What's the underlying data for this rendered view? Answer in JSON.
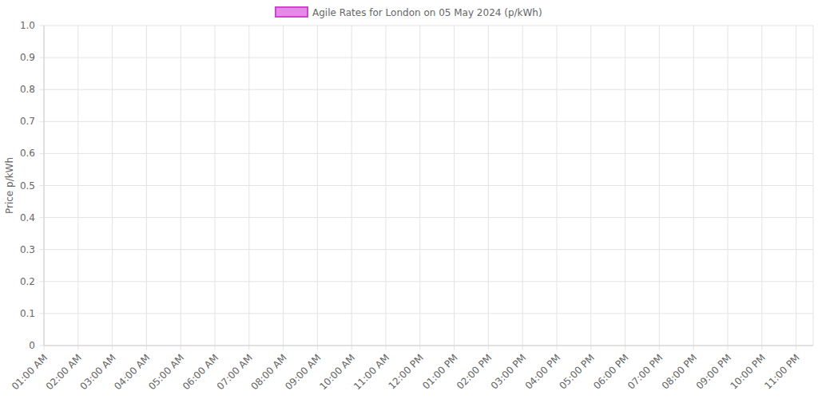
{
  "chart_data": {
    "type": "bar",
    "title": "Agile Rates for London on 05 May 2024 (p/kWh)",
    "y_label": "Price p/kWh",
    "categories": [
      "01:00 AM",
      "02:00 AM",
      "03:00 AM",
      "04:00 AM",
      "05:00 AM",
      "06:00 AM",
      "07:00 AM",
      "08:00 AM",
      "09:00 AM",
      "10:00 AM",
      "11:00 AM",
      "12:00 PM",
      "01:00 PM",
      "02:00 PM",
      "03:00 PM",
      "04:00 PM",
      "05:00 PM",
      "06:00 PM",
      "07:00 PM",
      "08:00 PM",
      "09:00 PM",
      "10:00 PM",
      "11:00 PM"
    ],
    "series": [
      {
        "name": "Agile Rates for London on 05 May 2024 (p/kWh)",
        "color": "#e68ae8",
        "values": [
          null,
          null,
          null,
          null,
          null,
          null,
          null,
          null,
          null,
          null,
          null,
          null,
          null,
          null,
          null,
          null,
          null,
          null,
          null,
          null,
          null,
          null,
          null
        ]
      }
    ],
    "ylim": [
      0,
      1
    ],
    "yticks": [
      0,
      0.1,
      0.2,
      0.3,
      0.4,
      0.5,
      0.6,
      0.7,
      0.8,
      0.9,
      {
        "value": 1,
        "label": "1.0"
      }
    ],
    "grid": true,
    "legend": "top"
  }
}
